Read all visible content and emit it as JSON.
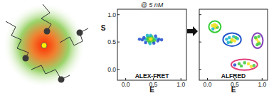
{
  "chart_data": [
    {
      "type": "scatter",
      "title": "@ 5 nM",
      "annotation": "ALEX-FRET",
      "x_label": "E",
      "y_label": "S",
      "color": "#1f4fd0",
      "xlim": [
        -0.15,
        1.1
      ],
      "ylim": [
        -0.2,
        1.1
      ],
      "xticks": [
        {
          "value": 0,
          "label": "0.0"
        },
        0.5,
        {
          "value": 1,
          "label": "1.0"
        }
      ],
      "yticks": [
        {
          "value": 0,
          "label": "0.0"
        },
        0.5,
        {
          "value": 1,
          "label": "1.0"
        }
      ],
      "series": [
        {
          "x": [
            0.45,
            0.42,
            0.48,
            0.4,
            0.5,
            0.44,
            0.46,
            0.38,
            0.52,
            0.35,
            0.55,
            0.43,
            0.47,
            0.41,
            0.49,
            0.3,
            0.6,
            0.36,
            0.54,
            0.45,
            0.39,
            0.51,
            0.33,
            0.58,
            0.44,
            0.46,
            0.25,
            0.65
          ],
          "values": [
            0.55,
            0.57,
            0.54,
            0.53,
            0.56,
            0.52,
            0.58,
            0.56,
            0.53,
            0.55,
            0.57,
            0.5,
            0.6,
            0.59,
            0.51,
            0.54,
            0.55,
            0.49,
            0.61,
            0.62,
            0.62,
            0.48,
            0.58,
            0.52,
            0.47,
            0.56,
            0.55,
            0.54
          ]
        }
      ]
    },
    {
      "type": "scatter",
      "annotation": "ALFRED",
      "x_label": "E",
      "color": "#1f4fd0",
      "tick_labels": "x",
      "xlim": [
        -0.15,
        1.1
      ],
      "ylim": [
        -0.2,
        1.1
      ],
      "xticks": [
        {
          "value": 0,
          "label": "0.0"
        },
        0.5,
        {
          "value": 1,
          "label": "1.0"
        }
      ],
      "yticks": [
        {
          "value": 0,
          "label": "0.0"
        },
        0.5,
        {
          "value": 1,
          "label": "1.0"
        }
      ],
      "series": [
        {
          "color": "#33cc33",
          "x": [
            0.12,
            0.15,
            0.09,
            0.18,
            0.13,
            0.1,
            0.16
          ],
          "values": [
            0.78,
            0.76,
            0.8,
            0.77,
            0.82,
            0.74,
            0.8
          ]
        },
        {
          "color": "#2255cc",
          "x": [
            0.45,
            0.4,
            0.5,
            0.35,
            0.55,
            0.43,
            0.48,
            0.38,
            0.52,
            0.45
          ],
          "values": [
            0.55,
            0.58,
            0.52,
            0.55,
            0.56,
            0.5,
            0.6,
            0.49,
            0.58,
            0.53
          ]
        },
        {
          "color": "#8844bb",
          "x": [
            0.9,
            0.93,
            0.88,
            0.95,
            0.91,
            0.94
          ],
          "values": [
            0.55,
            0.5,
            0.58,
            0.47,
            0.45,
            0.6
          ]
        },
        {
          "color": "#e0407a",
          "x": [
            0.5,
            0.62,
            0.75,
            0.85,
            0.68,
            0.58,
            0.8
          ],
          "values": [
            0.08,
            0.06,
            0.1,
            0.07,
            0.12,
            0.1,
            0.05
          ]
        }
      ]
    }
  ]
}
